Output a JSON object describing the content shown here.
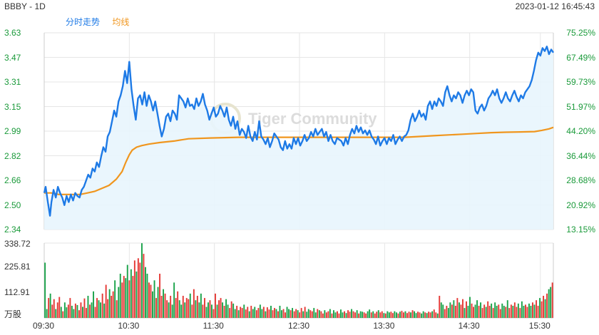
{
  "header": {
    "ticker": "BBBY - 1D",
    "timestamp": "2023-01-12 16:45:43"
  },
  "legend": {
    "price_label": "分时走势",
    "avg_label": "均线"
  },
  "watermark": "Tiger Community",
  "colors": {
    "price": "#1e7ae6",
    "avg": "#f0961e",
    "up": "#e53935",
    "down": "#1aa34a",
    "grid": "#e6e6e6"
  },
  "price_axis": {
    "left_ticks": [
      "3.63",
      "3.47",
      "3.31",
      "3.15",
      "2.99",
      "2.82",
      "2.66",
      "2.50",
      "2.34"
    ],
    "right_ticks": [
      "75.25%",
      "67.49%",
      "59.73%",
      "51.97%",
      "44.20%",
      "36.44%",
      "28.68%",
      "20.92%",
      "13.15%"
    ]
  },
  "volume_axis": {
    "ticks": [
      "338.72",
      "225.81",
      "112.91"
    ],
    "unit": "万股"
  },
  "time_axis": [
    "09:30",
    "10:30",
    "11:30",
    "12:30",
    "13:30",
    "14:30",
    "15:30"
  ],
  "chart_data": {
    "type": "line",
    "price_range": [
      2.34,
      3.63
    ],
    "volume_range": [
      0,
      338.72
    ],
    "price_points": [
      [
        0,
        2.58
      ],
      [
        2,
        2.62
      ],
      [
        5,
        2.52
      ],
      [
        8,
        2.43
      ],
      [
        10,
        2.52
      ],
      [
        13,
        2.6
      ],
      [
        16,
        2.55
      ],
      [
        19,
        2.62
      ],
      [
        22,
        2.58
      ],
      [
        25,
        2.55
      ],
      [
        28,
        2.5
      ],
      [
        31,
        2.56
      ],
      [
        34,
        2.52
      ],
      [
        37,
        2.57
      ],
      [
        40,
        2.53
      ],
      [
        43,
        2.58
      ],
      [
        46,
        2.56
      ],
      [
        49,
        2.55
      ],
      [
        52,
        2.6
      ],
      [
        55,
        2.62
      ],
      [
        58,
        2.66
      ],
      [
        61,
        2.7
      ],
      [
        64,
        2.68
      ],
      [
        67,
        2.74
      ],
      [
        70,
        2.72
      ],
      [
        73,
        2.78
      ],
      [
        76,
        2.75
      ],
      [
        79,
        2.82
      ],
      [
        82,
        2.88
      ],
      [
        85,
        2.85
      ],
      [
        88,
        2.95
      ],
      [
        91,
        2.98
      ],
      [
        94,
        3.05
      ],
      [
        97,
        3.12
      ],
      [
        100,
        3.08
      ],
      [
        103,
        3.18
      ],
      [
        106,
        3.22
      ],
      [
        109,
        3.28
      ],
      [
        112,
        3.38
      ],
      [
        115,
        3.3
      ],
      [
        118,
        3.44
      ],
      [
        121,
        3.26
      ],
      [
        124,
        3.15
      ],
      [
        127,
        3.06
      ],
      [
        130,
        3.2
      ],
      [
        133,
        3.22
      ],
      [
        136,
        3.16
      ],
      [
        139,
        3.24
      ],
      [
        142,
        3.15
      ],
      [
        145,
        3.22
      ],
      [
        148,
        3.18
      ],
      [
        151,
        3.12
      ],
      [
        154,
        3.18
      ],
      [
        157,
        3.1
      ],
      [
        160,
        3.02
      ],
      [
        163,
        2.95
      ],
      [
        166,
        3.0
      ],
      [
        169,
        3.08
      ],
      [
        172,
        3.1
      ],
      [
        175,
        3.05
      ],
      [
        178,
        3.12
      ],
      [
        181,
        3.1
      ],
      [
        184,
        3.06
      ],
      [
        187,
        3.22
      ],
      [
        190,
        3.2
      ],
      [
        193,
        3.18
      ],
      [
        196,
        3.14
      ],
      [
        199,
        3.2
      ],
      [
        202,
        3.15
      ],
      [
        205,
        3.16
      ],
      [
        208,
        3.13
      ],
      [
        211,
        3.2
      ],
      [
        214,
        3.15
      ],
      [
        217,
        3.18
      ],
      [
        220,
        3.23
      ],
      [
        223,
        3.16
      ],
      [
        226,
        3.12
      ],
      [
        229,
        3.06
      ],
      [
        232,
        3.1
      ],
      [
        235,
        3.14
      ],
      [
        238,
        3.08
      ],
      [
        241,
        3.1
      ],
      [
        244,
        3.15
      ],
      [
        247,
        3.12
      ],
      [
        250,
        3.08
      ],
      [
        253,
        3.14
      ],
      [
        256,
        3.06
      ],
      [
        259,
        3.02
      ],
      [
        262,
        3.08
      ],
      [
        265,
        3.0
      ],
      [
        268,
        3.05
      ],
      [
        271,
        2.96
      ],
      [
        274,
        3.0
      ],
      [
        277,
        2.98
      ],
      [
        280,
        2.94
      ],
      [
        283,
        3.02
      ],
      [
        286,
        2.95
      ],
      [
        289,
        2.92
      ],
      [
        292,
        2.98
      ],
      [
        295,
        2.93
      ],
      [
        298,
        3.05
      ],
      [
        301,
        2.95
      ],
      [
        304,
        2.93
      ],
      [
        307,
        2.9
      ],
      [
        310,
        2.94
      ],
      [
        313,
        2.88
      ],
      [
        316,
        2.92
      ],
      [
        319,
        2.97
      ],
      [
        322,
        2.95
      ],
      [
        325,
        2.93
      ],
      [
        328,
        2.88
      ],
      [
        331,
        2.86
      ],
      [
        334,
        2.92
      ],
      [
        337,
        2.87
      ],
      [
        340,
        2.9
      ],
      [
        343,
        2.87
      ],
      [
        346,
        2.94
      ],
      [
        349,
        2.9
      ],
      [
        352,
        2.94
      ],
      [
        355,
        2.89
      ],
      [
        358,
        2.92
      ],
      [
        361,
        2.96
      ],
      [
        364,
        2.92
      ],
      [
        367,
        2.94
      ],
      [
        370,
        2.98
      ],
      [
        373,
        2.95
      ],
      [
        376,
        3.0
      ],
      [
        379,
        2.96
      ],
      [
        382,
        2.98
      ],
      [
        385,
        3.0
      ],
      [
        388,
        2.95
      ],
      [
        391,
        2.98
      ],
      [
        394,
        2.92
      ],
      [
        397,
        2.96
      ],
      [
        400,
        2.92
      ],
      [
        403,
        2.9
      ],
      [
        406,
        2.94
      ],
      [
        409,
        2.93
      ],
      [
        412,
        2.92
      ],
      [
        415,
        2.89
      ],
      [
        418,
        2.94
      ],
      [
        421,
        2.9
      ],
      [
        424,
        2.96
      ],
      [
        427,
        3.0
      ],
      [
        430,
        2.97
      ],
      [
        433,
        3.02
      ],
      [
        436,
        2.98
      ],
      [
        439,
        3.01
      ],
      [
        442,
        2.97
      ],
      [
        445,
        2.99
      ],
      [
        448,
        2.96
      ],
      [
        451,
        2.99
      ],
      [
        454,
        2.95
      ],
      [
        457,
        2.93
      ],
      [
        460,
        2.9
      ],
      [
        463,
        2.95
      ],
      [
        466,
        2.89
      ],
      [
        469,
        2.92
      ],
      [
        472,
        2.94
      ],
      [
        475,
        2.9
      ],
      [
        478,
        2.94
      ],
      [
        481,
        2.92
      ],
      [
        484,
        2.96
      ],
      [
        487,
        2.9
      ],
      [
        490,
        2.93
      ],
      [
        493,
        2.95
      ],
      [
        496,
        2.92
      ],
      [
        499,
        2.95
      ],
      [
        502,
        2.96
      ],
      [
        505,
        2.99
      ],
      [
        508,
        3.06
      ],
      [
        511,
        3.1
      ],
      [
        514,
        3.05
      ],
      [
        517,
        3.08
      ],
      [
        520,
        3.12
      ],
      [
        523,
        3.08
      ],
      [
        526,
        3.1
      ],
      [
        529,
        3.06
      ],
      [
        532,
        3.15
      ],
      [
        535,
        3.18
      ],
      [
        538,
        3.13
      ],
      [
        541,
        3.18
      ],
      [
        544,
        3.15
      ],
      [
        547,
        3.2
      ],
      [
        550,
        3.18
      ],
      [
        553,
        3.15
      ],
      [
        556,
        3.24
      ],
      [
        559,
        3.28
      ],
      [
        562,
        3.22
      ],
      [
        565,
        3.18
      ],
      [
        568,
        3.22
      ],
      [
        571,
        3.2
      ],
      [
        574,
        3.24
      ],
      [
        577,
        3.22
      ],
      [
        580,
        3.17
      ],
      [
        583,
        3.22
      ],
      [
        586,
        3.25
      ],
      [
        589,
        3.22
      ],
      [
        592,
        3.26
      ],
      [
        595,
        3.24
      ],
      [
        598,
        3.12
      ],
      [
        601,
        3.1
      ],
      [
        604,
        3.14
      ],
      [
        607,
        3.16
      ],
      [
        610,
        3.12
      ],
      [
        613,
        3.15
      ],
      [
        616,
        3.2
      ],
      [
        619,
        3.22
      ],
      [
        622,
        3.25
      ],
      [
        625,
        3.22
      ],
      [
        628,
        3.26
      ],
      [
        631,
        3.2
      ],
      [
        634,
        3.17
      ],
      [
        637,
        3.2
      ],
      [
        640,
        3.24
      ],
      [
        643,
        3.2
      ],
      [
        646,
        3.18
      ],
      [
        649,
        3.22
      ],
      [
        652,
        3.25
      ],
      [
        655,
        3.21
      ],
      [
        658,
        3.18
      ],
      [
        661,
        3.22
      ],
      [
        664,
        3.2
      ],
      [
        667,
        3.24
      ],
      [
        670,
        3.26
      ],
      [
        673,
        3.28
      ],
      [
        676,
        3.32
      ],
      [
        679,
        3.38
      ],
      [
        682,
        3.45
      ],
      [
        685,
        3.5
      ],
      [
        688,
        3.48
      ],
      [
        691,
        3.53
      ],
      [
        694,
        3.51
      ],
      [
        697,
        3.54
      ],
      [
        700,
        3.49
      ],
      [
        703,
        3.52
      ],
      [
        706,
        3.5
      ]
    ],
    "avg_points": [
      [
        0,
        2.58
      ],
      [
        10,
        2.58
      ],
      [
        20,
        2.57
      ],
      [
        30,
        2.57
      ],
      [
        40,
        2.57
      ],
      [
        50,
        2.57
      ],
      [
        60,
        2.58
      ],
      [
        70,
        2.59
      ],
      [
        80,
        2.61
      ],
      [
        90,
        2.63
      ],
      [
        100,
        2.67
      ],
      [
        108,
        2.72
      ],
      [
        113,
        2.78
      ],
      [
        118,
        2.83
      ],
      [
        122,
        2.86
      ],
      [
        128,
        2.88
      ],
      [
        135,
        2.89
      ],
      [
        145,
        2.9
      ],
      [
        160,
        2.91
      ],
      [
        180,
        2.92
      ],
      [
        200,
        2.935
      ],
      [
        230,
        2.94
      ],
      [
        270,
        2.945
      ],
      [
        300,
        2.945
      ],
      [
        340,
        2.945
      ],
      [
        380,
        2.945
      ],
      [
        420,
        2.945
      ],
      [
        460,
        2.945
      ],
      [
        500,
        2.945
      ],
      [
        520,
        2.95
      ],
      [
        540,
        2.955
      ],
      [
        560,
        2.96
      ],
      [
        580,
        2.965
      ],
      [
        600,
        2.97
      ],
      [
        620,
        2.975
      ],
      [
        640,
        2.978
      ],
      [
        660,
        2.98
      ],
      [
        680,
        2.982
      ],
      [
        690,
        2.99
      ],
      [
        700,
        3.0
      ],
      [
        706,
        3.01
      ]
    ],
    "volumes": [
      250,
      40,
      90,
      110,
      60,
      85,
      40,
      70,
      95,
      50,
      30,
      70,
      48,
      60,
      90,
      55,
      40,
      65,
      58,
      35,
      70,
      50,
      88,
      45,
      100,
      60,
      70,
      120,
      50,
      90,
      80,
      70,
      110,
      65,
      150,
      85,
      130,
      100,
      120,
      170,
      80,
      140,
      200,
      160,
      190,
      180,
      240,
      170,
      220,
      190,
      260,
      210,
      270,
      250,
      338,
      290,
      230,
      200,
      160,
      150,
      120,
      170,
      90,
      140,
      200,
      100,
      130,
      110,
      80,
      70,
      100,
      60,
      160,
      90,
      120,
      80,
      60,
      100,
      70,
      90,
      85,
      110,
      60,
      130,
      80,
      100,
      70,
      110,
      60,
      90,
      50,
      70,
      80,
      60,
      40,
      110,
      60,
      80,
      90,
      70,
      55,
      85,
      60,
      45,
      75,
      65,
      40,
      55,
      35,
      50,
      45,
      60,
      38,
      50,
      30,
      55,
      40,
      50,
      35,
      45,
      60,
      40,
      50,
      30,
      48,
      38,
      55,
      35,
      45,
      40,
      30,
      55,
      35,
      40,
      25,
      50,
      40,
      35,
      45,
      30,
      40,
      35,
      25,
      45,
      30,
      50,
      28,
      40,
      35,
      30,
      45,
      25,
      40,
      35,
      30,
      20,
      35,
      25,
      30,
      40,
      20,
      35,
      25,
      30,
      20,
      38,
      25,
      30,
      22,
      35,
      28,
      40,
      30,
      25,
      35,
      20,
      30,
      28,
      25,
      20,
      30,
      38,
      25,
      30,
      20,
      28,
      35,
      25,
      30,
      22,
      20,
      30,
      25,
      28,
      22,
      30,
      25,
      20,
      28,
      32,
      25,
      30,
      22,
      28,
      25,
      35,
      30,
      22,
      28,
      25,
      20,
      30,
      25,
      22,
      28,
      25,
      30,
      38,
      25,
      20,
      100,
      70,
      60,
      40,
      55,
      45,
      70,
      60,
      80,
      55,
      90,
      70,
      60,
      85,
      45,
      75,
      55,
      95,
      65,
      50,
      60,
      80,
      55,
      70,
      45,
      60,
      50,
      75,
      55,
      65,
      45,
      70,
      55,
      60,
      40,
      65,
      55,
      50,
      80,
      45,
      60,
      55,
      70,
      50,
      65,
      45,
      75,
      55,
      60,
      50,
      65,
      55,
      70,
      60,
      80,
      55,
      90,
      75,
      100,
      85,
      110,
      130,
      140,
      160
    ]
  }
}
